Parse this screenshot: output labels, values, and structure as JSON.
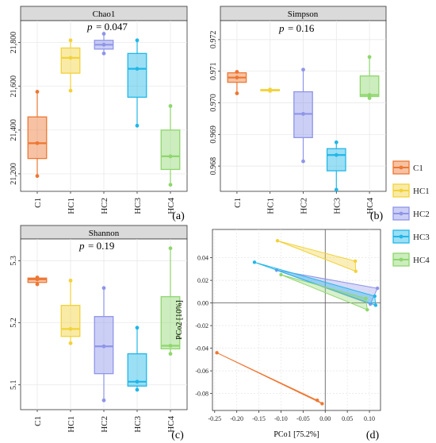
{
  "colors": {
    "C1": "#EE7733",
    "HC1": "#F2D23A",
    "HC2": "#8F95E8",
    "HC3": "#21B7E8",
    "HC4": "#8FD66E",
    "strip": "#DADADA",
    "grid": "#E6E6E6",
    "whisker": "#E6A800"
  },
  "legend": {
    "items": [
      "C1",
      "HC1",
      "HC2",
      "HC3",
      "HC4"
    ]
  },
  "chart_data": [
    {
      "type": "box",
      "panel_label": "(a)",
      "title": "Chao1",
      "annotation_p": "p",
      "annotation_value": "= 0.047",
      "categories": [
        "C1",
        "HC1",
        "HC2",
        "HC3",
        "HC4"
      ],
      "yticks": [
        "21,200",
        "21,400",
        "21,600",
        "21,800"
      ],
      "ytick_values": [
        21200,
        21400,
        21600,
        21800
      ],
      "ylim": [
        21120,
        21900
      ],
      "boxes": [
        {
          "q1": 21270,
          "median": 21340,
          "q3": 21460,
          "min": 21190,
          "max": 21575,
          "points": [
            21190,
            21340,
            21575
          ]
        },
        {
          "q1": 21660,
          "median": 21730,
          "q3": 21775,
          "min": 21580,
          "max": 21810,
          "points": [
            21580,
            21730,
            21810
          ]
        },
        {
          "q1": 21770,
          "median": 21790,
          "q3": 21810,
          "min": 21750,
          "max": 21840,
          "points": [
            21750,
            21790,
            21840
          ]
        },
        {
          "q1": 21550,
          "median": 21680,
          "q3": 21750,
          "min": 21420,
          "max": 21810,
          "points": [
            21420,
            21680,
            21810
          ]
        },
        {
          "q1": 21220,
          "median": 21280,
          "q3": 21400,
          "min": 21150,
          "max": 21510,
          "points": [
            21150,
            21280,
            21510
          ]
        }
      ]
    },
    {
      "type": "box",
      "panel_label": "(b)",
      "title": "Simpson",
      "annotation_p": "p",
      "annotation_value": "= 0.16",
      "categories": [
        "C1",
        "HC1",
        "HC2",
        "HC3",
        "HC4"
      ],
      "yticks": [
        "0.968",
        "0.969",
        "0.970",
        "0.971",
        "0.972"
      ],
      "ytick_values": [
        0.968,
        0.969,
        0.97,
        0.971,
        0.972
      ],
      "ylim": [
        0.9672,
        0.9726
      ],
      "boxes": [
        {
          "q1": 0.97065,
          "median": 0.9708,
          "q3": 0.97095,
          "min": 0.9703,
          "max": 0.97098,
          "points": [
            0.9703,
            0.9708,
            0.97098
          ]
        },
        {
          "q1": 0.97038,
          "median": 0.9704,
          "q3": 0.97042,
          "min": 0.97038,
          "max": 0.97042,
          "points": [
            0.97038,
            0.9704,
            0.97042
          ]
        },
        {
          "q1": 0.9689,
          "median": 0.96965,
          "q3": 0.97035,
          "min": 0.96815,
          "max": 0.97105,
          "points": [
            0.96815,
            0.96965,
            0.97105
          ]
        },
        {
          "q1": 0.96785,
          "median": 0.96835,
          "q3": 0.96855,
          "min": 0.96725,
          "max": 0.96875,
          "points": [
            0.96725,
            0.96835,
            0.96875
          ]
        },
        {
          "q1": 0.9702,
          "median": 0.97025,
          "q3": 0.97085,
          "min": 0.97015,
          "max": 0.97145,
          "points": [
            0.97015,
            0.97025,
            0.97145
          ]
        }
      ]
    },
    {
      "type": "box",
      "panel_label": "(c)",
      "title": "Shannon",
      "annotation_p": "p",
      "annotation_value": "= 0.19",
      "categories": [
        "C1",
        "HC1",
        "HC2",
        "HC3",
        "HC4"
      ],
      "yticks": [
        "5.1",
        "5.2",
        "5.3"
      ],
      "ytick_values": [
        5.1,
        5.2,
        5.3
      ],
      "ylim": [
        5.06,
        5.335
      ],
      "boxes": [
        {
          "q1": 5.265,
          "median": 5.27,
          "q3": 5.272,
          "min": 5.262,
          "max": 5.273,
          "points": [
            5.262,
            5.27,
            5.273
          ]
        },
        {
          "q1": 5.178,
          "median": 5.19,
          "q3": 5.228,
          "min": 5.167,
          "max": 5.268,
          "points": [
            5.167,
            5.19,
            5.268
          ]
        },
        {
          "q1": 5.118,
          "median": 5.162,
          "q3": 5.21,
          "min": 5.075,
          "max": 5.256,
          "points": [
            5.075,
            5.162,
            5.256
          ]
        },
        {
          "q1": 5.098,
          "median": 5.105,
          "q3": 5.15,
          "min": 5.092,
          "max": 5.192,
          "points": [
            5.092,
            5.105,
            5.192
          ]
        },
        {
          "q1": 5.158,
          "median": 5.163,
          "q3": 5.242,
          "min": 5.15,
          "max": 5.32,
          "points": [
            5.15,
            5.163,
            5.32
          ]
        }
      ]
    },
    {
      "type": "scatter",
      "panel_label": "(d)",
      "xlabel": "PCo1 [75.2%]",
      "ylabel": "PCo2 [10%]",
      "xlim": [
        -0.255,
        0.125
      ],
      "ylim": [
        -0.095,
        0.065
      ],
      "xticks": [
        -0.25,
        -0.2,
        -0.15,
        -0.1,
        -0.05,
        0.0,
        0.05,
        0.1
      ],
      "xtick_labels": [
        "-0.25",
        "-0.20",
        "-0.15",
        "-0.10",
        "-0.05",
        "0.00",
        "0.05",
        "0.10"
      ],
      "yticks": [
        -0.08,
        -0.06,
        -0.04,
        -0.02,
        0.0,
        0.02,
        0.04
      ],
      "ytick_labels": [
        "-0.08",
        "-0.06",
        "-0.04",
        "-0.02",
        "0.00",
        "0.02",
        "0.04"
      ],
      "groups": [
        {
          "name": "C1",
          "points": [
            [
              -0.245,
              -0.044
            ],
            [
              -0.018,
              -0.086
            ],
            [
              -0.007,
              -0.089
            ]
          ]
        },
        {
          "name": "HC1",
          "points": [
            [
              -0.108,
              0.055
            ],
            [
              0.068,
              0.037
            ],
            [
              0.069,
              0.028
            ]
          ]
        },
        {
          "name": "HC2",
          "points": [
            [
              -0.11,
              0.029
            ],
            [
              0.102,
              -0.001
            ],
            [
              0.118,
              0.013
            ]
          ]
        },
        {
          "name": "HC3",
          "points": [
            [
              -0.16,
              0.036
            ],
            [
              0.112,
              0.006
            ],
            [
              0.114,
              -0.002
            ]
          ]
        },
        {
          "name": "HC4",
          "points": [
            [
              -0.1,
              0.025
            ],
            [
              0.092,
              0.004
            ],
            [
              0.095,
              -0.006
            ]
          ]
        }
      ]
    }
  ]
}
